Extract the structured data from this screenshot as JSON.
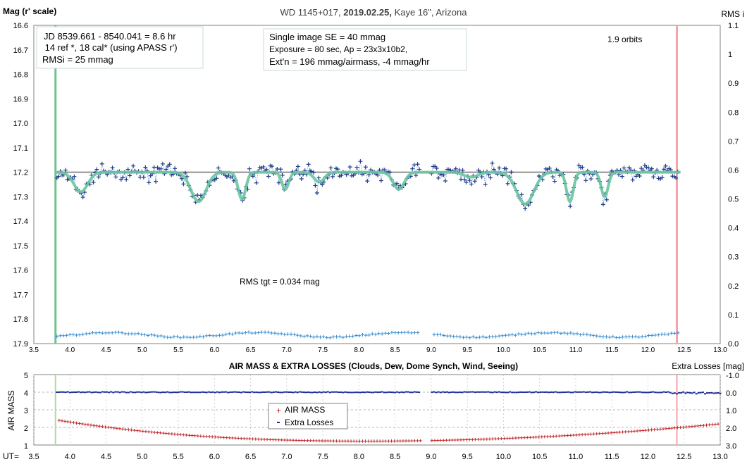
{
  "chart_data": [
    {
      "type": "scatter",
      "title": "WD 1145+017, 2019.02.25, Kaye 16\", Arizona",
      "ylabel_left": "Mag (r' scale)",
      "ylabel_right": "RMS i",
      "xlim": [
        3.5,
        13.0
      ],
      "x_ticks": [
        "3.5",
        "4.0",
        "4.5",
        "5.0",
        "5.5",
        "6.0",
        "6.5",
        "7.0",
        "7.5",
        "8.0",
        "8.5",
        "9.0",
        "9.5",
        "10.0",
        "10.5",
        "11.0",
        "11.5",
        "12.0",
        "12.5",
        "13.0"
      ],
      "ylim": [
        16.6,
        17.9
      ],
      "y_ticks": [
        "16.6",
        "16.7",
        "16.8",
        "16.9",
        "17.0",
        "17.1",
        "17.2",
        "17.3",
        "17.4",
        "17.5",
        "17.6",
        "17.7",
        "17.8",
        "17.9"
      ],
      "y2lim": [
        1.1,
        0.0
      ],
      "y2_ticks": [
        "1.1",
        "1",
        "0.9",
        "0.8",
        "0.7",
        "0.6",
        "0.5",
        "0.4",
        "0.3",
        "0.2",
        "0.1",
        "0.0"
      ],
      "vertical_lines": [
        {
          "x": 3.8,
          "color": "#70c090"
        },
        {
          "x": 12.4,
          "color": "#f4a4a8"
        }
      ],
      "reference_level": 17.2,
      "gap_ut": [
        8.85,
        9.0
      ],
      "model_dips": [
        {
          "center": 4.15,
          "depth": 0.08,
          "width": 0.2
        },
        {
          "center": 5.78,
          "depth": 0.12,
          "width": 0.22
        },
        {
          "center": 6.38,
          "depth": 0.11,
          "width": 0.11
        },
        {
          "center": 6.98,
          "depth": 0.07,
          "width": 0.1
        },
        {
          "center": 7.45,
          "depth": 0.04,
          "width": 0.15
        },
        {
          "center": 8.55,
          "depth": 0.07,
          "width": 0.16
        },
        {
          "center": 9.55,
          "depth": 0.02,
          "width": 0.2
        },
        {
          "center": 10.3,
          "depth": 0.13,
          "width": 0.25
        },
        {
          "center": 10.92,
          "depth": 0.12,
          "width": 0.1
        },
        {
          "center": 11.4,
          "depth": 0.1,
          "width": 0.1
        }
      ],
      "scatter_sigma": 0.035,
      "rms_level": 0.03,
      "colors": {
        "data": "#1f3c88",
        "model": "#6cc7a0",
        "rms": "#3c8fd0",
        "reference": "#909090"
      },
      "grid": false,
      "annotations": {
        "box1": [
          "JD 8539.661 - 8540.041 = 8.6 hr",
          " 14 ref *, 18 cal* (using APASS r')",
          "RMSi = 25 mmag"
        ],
        "box2": [
          "Single image SE = 40 mmag",
          "Exposure = 80 sec, Ap = 23x3x10b2,",
          "Ext'n = 196 mmag/airmass, -4 mmag/hr"
        ],
        "orbits": "1.9 orbits",
        "rms_tgt": "RMS tgt = 0.034 mag"
      }
    },
    {
      "type": "scatter",
      "title": "AIR MASS & EXTRA LOSSES (Clouds, Dew, Dome Synch, Wind, Seeing)",
      "ylabel_left": "AIR MASS",
      "ylabel_right": "Extra Losses [mag]",
      "xlabel": "UT=",
      "xlim": [
        3.5,
        13.0
      ],
      "x_ticks": [
        "3.5",
        "4.0",
        "4.5",
        "5.0",
        "5.5",
        "6.0",
        "6.5",
        "7.0",
        "7.5",
        "8.0",
        "8.5",
        "9.0",
        "9.5",
        "10.0",
        "10.5",
        "11.0",
        "11.5",
        "12.0",
        "12.5",
        "13.0"
      ],
      "ylim": [
        1,
        5
      ],
      "y_ticks": [
        "5",
        "4",
        "3",
        "2",
        "1"
      ],
      "y2lim": [
        -1.0,
        3.0
      ],
      "y2_ticks": [
        "-1.0",
        "0.0",
        "1.0",
        "2.0",
        "3.0"
      ],
      "vertical_lines": [
        {
          "x": 3.8,
          "color": "#b0d8a0"
        },
        {
          "x": 12.4,
          "color": "#f4a4a8"
        }
      ],
      "airmass_fit": {
        "min": 1.22,
        "t_min": 8.1,
        "k_before": 0.042,
        "k_after": 0.041,
        "start": 4.1
      },
      "extra_losses_level": 0.0,
      "colors": {
        "airmass": "#c0282c",
        "losses": "#1c2a9c"
      },
      "legend": {
        "position": "center",
        "entries": [
          "AIR MASS",
          "Extra Losses"
        ]
      },
      "grid": true
    }
  ]
}
